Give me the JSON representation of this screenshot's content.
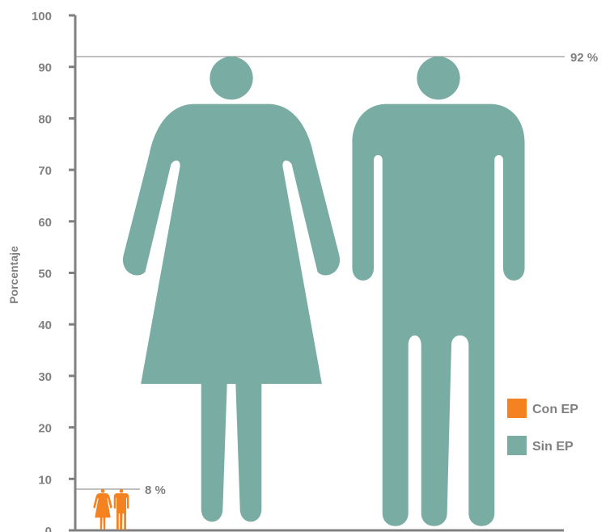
{
  "chart_data": {
    "type": "pictograph",
    "ylabel": "Porcentaje",
    "ylim": [
      0,
      100
    ],
    "yticks": [
      0,
      10,
      20,
      30,
      40,
      50,
      60,
      70,
      80,
      90,
      100
    ],
    "series": [
      {
        "name": "Con EP",
        "value": 8,
        "label": "8 %",
        "color": "#f58220"
      },
      {
        "name": "Sin EP",
        "value": 92,
        "label": "92 %",
        "color": "#79ada3"
      }
    ],
    "legend_position": "right",
    "grid": false
  }
}
